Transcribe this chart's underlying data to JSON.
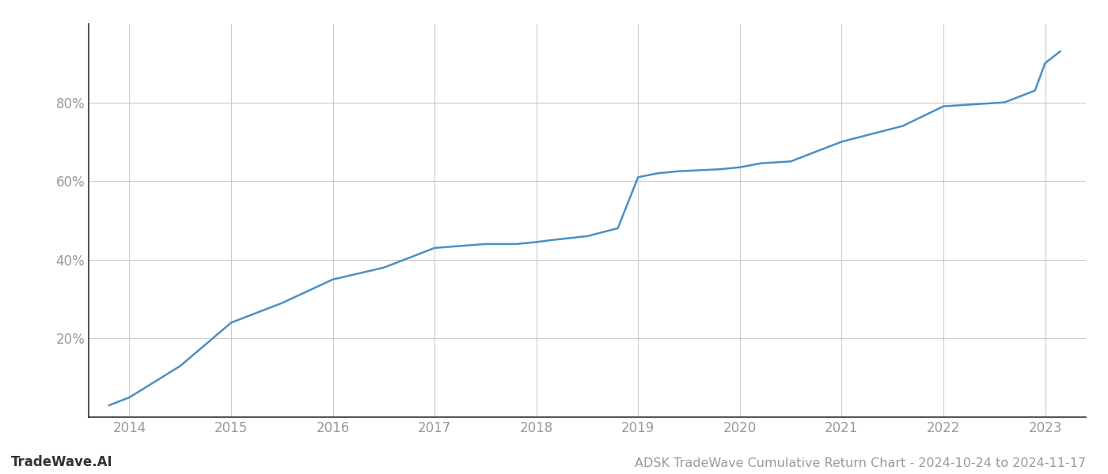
{
  "title": "ADSK TradeWave Cumulative Return Chart - 2024-10-24 to 2024-11-17",
  "watermark": "TradeWave.AI",
  "line_color": "#4a90c4",
  "background_color": "#ffffff",
  "grid_color": "#cccccc",
  "x_years": [
    2013.8,
    2014.0,
    2014.5,
    2015.0,
    2015.5,
    2016.0,
    2016.5,
    2017.0,
    2017.5,
    2017.8,
    2018.0,
    2018.15,
    2018.5,
    2018.8,
    2019.0,
    2019.2,
    2019.4,
    2019.8,
    2020.0,
    2020.2,
    2020.5,
    2021.0,
    2021.3,
    2021.6,
    2022.0,
    2022.3,
    2022.6,
    2022.9,
    2023.0,
    2023.15
  ],
  "y_values": [
    3,
    5,
    13,
    24,
    29,
    35,
    38,
    43,
    44,
    44,
    44.5,
    45,
    46,
    48,
    61,
    62,
    62.5,
    63,
    63.5,
    64.5,
    65,
    70,
    72,
    74,
    79,
    79.5,
    80,
    83,
    90,
    93
  ],
  "xlim": [
    2013.6,
    2023.4
  ],
  "ylim": [
    0,
    100
  ],
  "yticks": [
    20,
    40,
    60,
    80
  ],
  "xticks": [
    2014,
    2015,
    2016,
    2017,
    2018,
    2019,
    2020,
    2021,
    2022,
    2023
  ],
  "line_width": 1.8,
  "title_fontsize": 11.5,
  "tick_fontsize": 12,
  "watermark_fontsize": 12
}
